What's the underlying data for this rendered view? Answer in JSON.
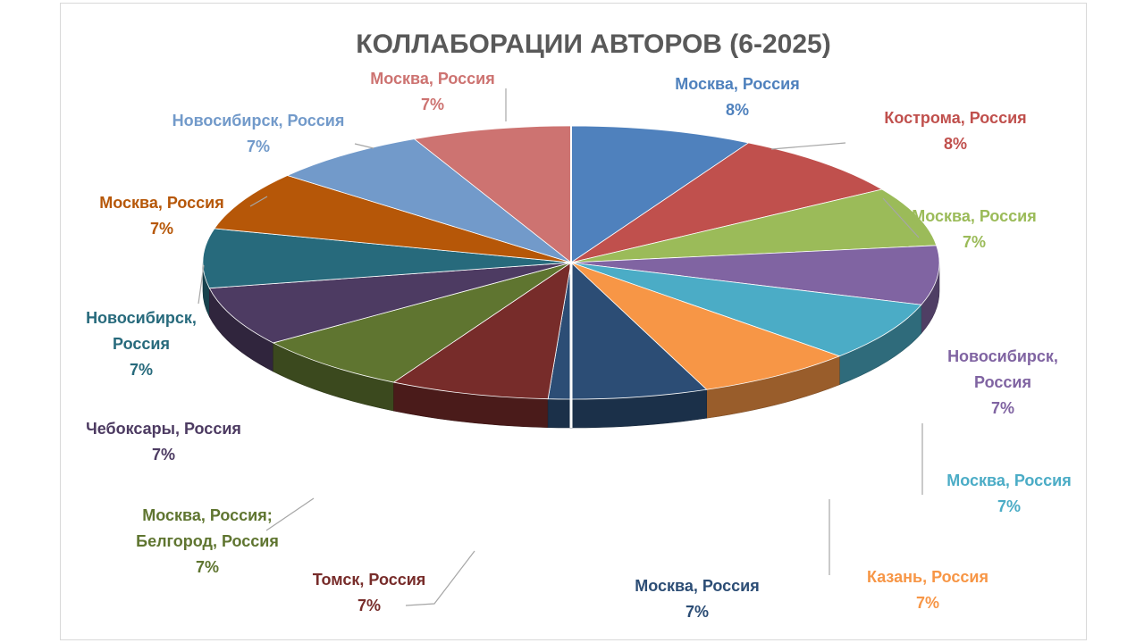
{
  "chart_data": {
    "type": "pie",
    "title": "КОЛЛАБОРАЦИИ АВТОРОВ (6-2025)",
    "slices": [
      {
        "label": "Москва, Россия",
        "value": 8,
        "value_label": "8%",
        "color": "#4F81BD",
        "label_color": "#4F81BD"
      },
      {
        "label": "Кострома, Россия",
        "value": 8,
        "value_label": "8%",
        "color": "#C0504D",
        "label_color": "#C0504D"
      },
      {
        "label": "Москва, Россия",
        "value": 7,
        "value_label": "7%",
        "color": "#9BBB59",
        "label_color": "#9BBB59"
      },
      {
        "label": "Новосибирск, Россия",
        "value": 7,
        "value_label": "7%",
        "color": "#8064A2",
        "label_color": "#8064A2"
      },
      {
        "label": "Москва, Россия",
        "value": 7,
        "value_label": "7%",
        "color": "#4BACC6",
        "label_color": "#4BACC6"
      },
      {
        "label": "Казань, Россия",
        "value": 7,
        "value_label": "7%",
        "color": "#F79646",
        "label_color": "#F79646"
      },
      {
        "label": "Москва, Россия",
        "value": 7,
        "value_label": "7%",
        "color": "#2C4D75",
        "label_color": "#2C4D75"
      },
      {
        "label": "Томск, Россия",
        "value": 7,
        "value_label": "7%",
        "color": "#772C2A",
        "label_color": "#772C2A"
      },
      {
        "label": "Москва, Россия; Белгород, Россия",
        "value": 7,
        "value_label": "7%",
        "color": "#5F7530",
        "label_color": "#5F7530"
      },
      {
        "label": "Чебоксары, Россия",
        "value": 7,
        "value_label": "7%",
        "color": "#4D3B62",
        "label_color": "#4D3B62"
      },
      {
        "label": "Новосибирск, Россия",
        "value": 7,
        "value_label": "7%",
        "color": "#276A7C",
        "label_color": "#276A7C"
      },
      {
        "label": "Москва, Россия",
        "value": 7,
        "value_label": "7%",
        "color": "#B65708",
        "label_color": "#B65708"
      },
      {
        "label": "Новосибирск, Россия",
        "value": 7,
        "value_label": "7%",
        "color": "#729ACA",
        "label_color": "#729ACA"
      },
      {
        "label": "Москва, Россия",
        "value": 7,
        "value_label": "7%",
        "color": "#CD7371",
        "label_color": "#CD7371"
      }
    ],
    "labels": [
      {
        "lines": [
          "Москва, Россия",
          "8%"
        ]
      },
      {
        "lines": [
          "Кострома, Россия",
          "8%"
        ]
      },
      {
        "lines": [
          "Москва, Россия",
          "7%"
        ]
      },
      {
        "lines": [
          "Новосибирск,",
          "Россия",
          "7%"
        ]
      },
      {
        "lines": [
          "Москва, Россия",
          "7%"
        ]
      },
      {
        "lines": [
          "Казань, Россия",
          "7%"
        ]
      },
      {
        "lines": [
          "Москва, Россия",
          "7%"
        ]
      },
      {
        "lines": [
          "Томск, Россия",
          "7%"
        ]
      },
      {
        "lines": [
          "Москва, Россия;",
          "Белгород, Россия",
          "7%"
        ]
      },
      {
        "lines": [
          "Чебоксары, Россия",
          "7%"
        ]
      },
      {
        "lines": [
          "Новосибирск,",
          "Россия",
          "7%"
        ]
      },
      {
        "lines": [
          "Москва, Россия",
          "7%"
        ]
      },
      {
        "lines": [
          "Новосибирск, Россия",
          "7%"
        ]
      },
      {
        "lines": [
          "Москва, Россия",
          "7%"
        ]
      }
    ],
    "legend": "none"
  }
}
